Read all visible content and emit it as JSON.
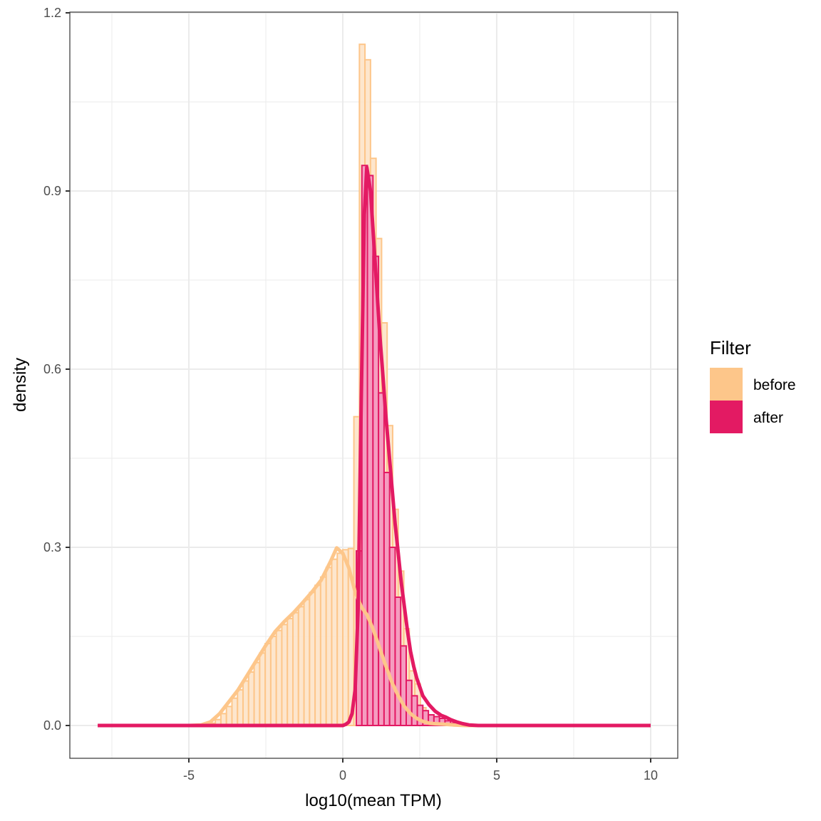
{
  "chart_data": {
    "type": "histogram+density",
    "title": "",
    "xlabel": "log10(mean TPM)",
    "ylabel": "density",
    "xlim": [
      -8.85,
      10.9
    ],
    "ylim": [
      -0.055,
      1.2
    ],
    "x_ticks": [
      -5,
      0,
      5,
      10
    ],
    "x_tick_labels": [
      "-5",
      "0",
      "5",
      "10"
    ],
    "y_ticks": [
      0.0,
      0.3,
      0.6,
      0.9,
      1.2
    ],
    "y_tick_labels": [
      "0.0",
      "0.3",
      "0.6",
      "0.9",
      "1.2"
    ],
    "grid": true,
    "legend": {
      "title": "Filter",
      "position": "right",
      "entries": [
        {
          "label": "before",
          "color": "#FDC68A"
        },
        {
          "label": "after",
          "color": "#E31A63"
        }
      ]
    },
    "binwidth": 0.18,
    "series": [
      {
        "name": "before",
        "color": "#FDC68A",
        "fill": "#FDE3C8",
        "histogram": {
          "bin_starts": [
            -4.32,
            -4.14,
            -3.96,
            -3.78,
            -3.6,
            -3.42,
            -3.24,
            -3.06,
            -2.88,
            -2.7,
            -2.52,
            -2.34,
            -2.16,
            -1.98,
            -1.8,
            -1.62,
            -1.44,
            -1.26,
            -1.08,
            -0.9,
            -0.72,
            -0.54,
            -0.36,
            -0.18,
            0.0,
            0.18,
            0.36,
            0.54,
            0.72,
            0.9,
            1.08,
            1.26,
            1.44,
            1.62,
            1.8,
            1.98,
            2.16,
            2.34,
            2.52,
            2.7,
            2.88,
            3.06,
            3.24,
            3.42,
            3.6,
            3.78
          ],
          "densities": [
            0.004,
            0.01,
            0.02,
            0.032,
            0.046,
            0.06,
            0.075,
            0.09,
            0.106,
            0.122,
            0.138,
            0.15,
            0.16,
            0.17,
            0.18,
            0.19,
            0.2,
            0.212,
            0.224,
            0.236,
            0.25,
            0.266,
            0.28,
            0.29,
            0.296,
            0.298,
            0.52,
            1.147,
            1.121,
            0.955,
            0.82,
            0.678,
            0.505,
            0.364,
            0.26,
            0.163,
            0.092,
            0.07,
            0.03,
            0.018,
            0.012,
            0.008,
            0.006,
            0.004,
            0.002,
            0.001
          ]
        },
        "density_curve": {
          "x": [
            -7.96,
            -5,
            -4.6,
            -4.3,
            -4.0,
            -3.7,
            -3.4,
            -3.1,
            -2.8,
            -2.5,
            -2.2,
            -1.9,
            -1.6,
            -1.3,
            -1.0,
            -0.7,
            -0.4,
            -0.2,
            0.0,
            0.2,
            0.4,
            0.6,
            0.8,
            1.0,
            1.2,
            1.4,
            1.6,
            1.8,
            2.0,
            2.2,
            2.4,
            2.6,
            2.8,
            3.0,
            3.3,
            3.6,
            4.0,
            4.5,
            10
          ],
          "y": [
            0,
            0,
            0.001,
            0.006,
            0.02,
            0.04,
            0.06,
            0.085,
            0.11,
            0.135,
            0.158,
            0.175,
            0.19,
            0.207,
            0.225,
            0.245,
            0.276,
            0.299,
            0.29,
            0.265,
            0.225,
            0.2,
            0.185,
            0.16,
            0.13,
            0.1,
            0.072,
            0.05,
            0.032,
            0.02,
            0.012,
            0.007,
            0.004,
            0.003,
            0.002,
            0.001,
            0,
            0,
            0
          ]
        }
      },
      {
        "name": "after",
        "color": "#E31A63",
        "fill": "#F49AC1",
        "histogram": {
          "bin_starts": [
            0.44,
            0.62,
            0.8,
            0.98,
            1.16,
            1.34,
            1.52,
            1.7,
            1.88,
            2.06,
            2.24,
            2.42,
            2.6,
            2.78,
            2.96,
            3.14,
            3.32,
            3.5,
            3.68
          ],
          "densities": [
            0.294,
            0.943,
            0.926,
            0.79,
            0.56,
            0.426,
            0.3,
            0.216,
            0.134,
            0.076,
            0.05,
            0.034,
            0.025,
            0.018,
            0.015,
            0.012,
            0.008,
            0.004,
            0.002
          ]
        },
        "density_curve": {
          "x": [
            -7.96,
            0.0,
            0.1,
            0.2,
            0.3,
            0.4,
            0.5,
            0.6,
            0.7,
            0.78,
            0.9,
            1.0,
            1.1,
            1.2,
            1.3,
            1.4,
            1.5,
            1.6,
            1.7,
            1.8,
            1.9,
            2.0,
            2.1,
            2.2,
            2.3,
            2.4,
            2.6,
            2.8,
            3.0,
            3.2,
            3.35,
            3.5,
            3.7,
            3.9,
            4.1,
            4.4,
            10
          ],
          "y": [
            0,
            0,
            0.002,
            0.006,
            0.02,
            0.06,
            0.2,
            0.55,
            0.86,
            0.94,
            0.9,
            0.82,
            0.74,
            0.66,
            0.59,
            0.52,
            0.46,
            0.4,
            0.34,
            0.29,
            0.24,
            0.2,
            0.16,
            0.125,
            0.1,
            0.08,
            0.05,
            0.035,
            0.024,
            0.017,
            0.014,
            0.01,
            0.006,
            0.003,
            0.001,
            0,
            0
          ]
        }
      }
    ]
  }
}
